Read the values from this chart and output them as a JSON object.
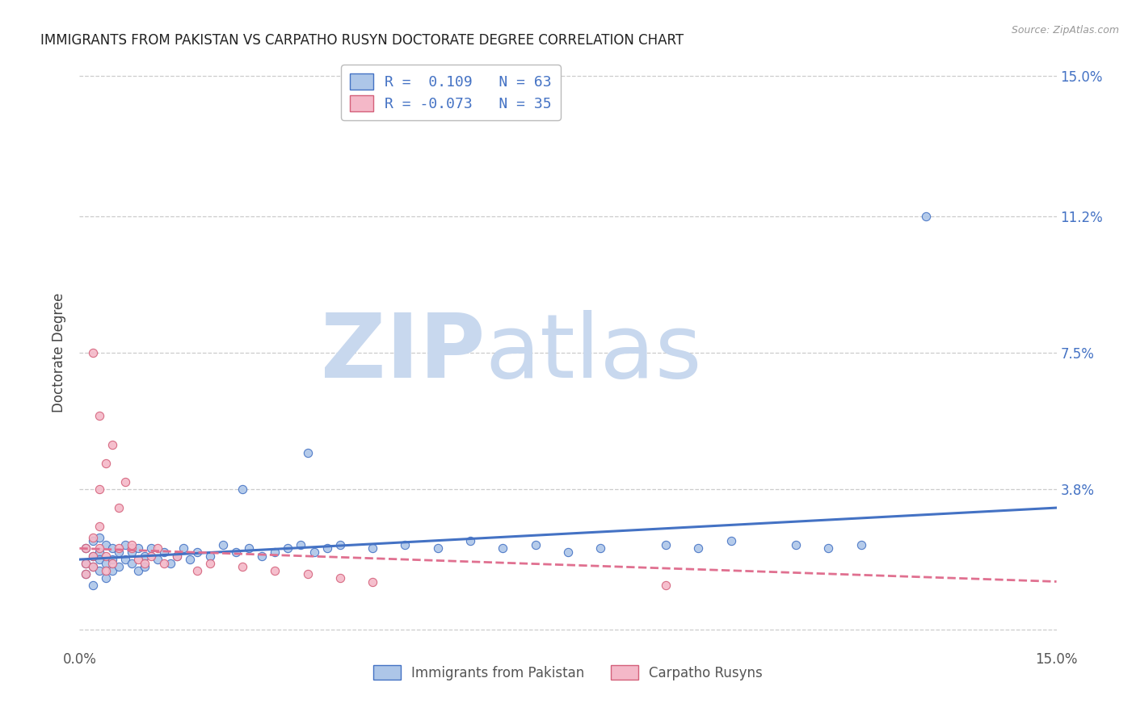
{
  "title": "IMMIGRANTS FROM PAKISTAN VS CARPATHO RUSYN DOCTORATE DEGREE CORRELATION CHART",
  "source_text": "Source: ZipAtlas.com",
  "ylabel": "Doctorate Degree",
  "xlim": [
    0.0,
    0.15
  ],
  "ylim": [
    -0.005,
    0.155
  ],
  "watermark_zip": "ZIP",
  "watermark_atlas": "atlas",
  "watermark_color_zip": "#c8d8ee",
  "watermark_color_atlas": "#c8d8ee",
  "grid_color": "#cccccc",
  "background_color": "#ffffff",
  "blue_scatter_x": [
    0.001,
    0.001,
    0.001,
    0.002,
    0.002,
    0.002,
    0.002,
    0.003,
    0.003,
    0.003,
    0.003,
    0.004,
    0.004,
    0.004,
    0.005,
    0.005,
    0.005,
    0.006,
    0.006,
    0.007,
    0.007,
    0.008,
    0.008,
    0.009,
    0.009,
    0.01,
    0.01,
    0.011,
    0.012,
    0.013,
    0.014,
    0.015,
    0.016,
    0.017,
    0.018,
    0.02,
    0.022,
    0.024,
    0.026,
    0.028,
    0.03,
    0.032,
    0.034,
    0.036,
    0.038,
    0.04,
    0.045,
    0.05,
    0.055,
    0.06,
    0.065,
    0.07,
    0.075,
    0.08,
    0.09,
    0.095,
    0.1,
    0.11,
    0.115,
    0.12,
    0.035,
    0.025,
    0.13
  ],
  "blue_scatter_y": [
    0.018,
    0.022,
    0.015,
    0.02,
    0.017,
    0.024,
    0.012,
    0.021,
    0.019,
    0.025,
    0.016,
    0.023,
    0.018,
    0.014,
    0.022,
    0.019,
    0.016,
    0.021,
    0.017,
    0.023,
    0.019,
    0.021,
    0.018,
    0.022,
    0.016,
    0.02,
    0.017,
    0.022,
    0.019,
    0.021,
    0.018,
    0.02,
    0.022,
    0.019,
    0.021,
    0.02,
    0.023,
    0.021,
    0.022,
    0.02,
    0.021,
    0.022,
    0.023,
    0.021,
    0.022,
    0.023,
    0.022,
    0.023,
    0.022,
    0.024,
    0.022,
    0.023,
    0.021,
    0.022,
    0.023,
    0.022,
    0.024,
    0.023,
    0.022,
    0.023,
    0.048,
    0.038,
    0.112
  ],
  "pink_scatter_x": [
    0.001,
    0.001,
    0.001,
    0.002,
    0.002,
    0.002,
    0.003,
    0.003,
    0.003,
    0.004,
    0.004,
    0.005,
    0.005,
    0.006,
    0.006,
    0.007,
    0.008,
    0.009,
    0.01,
    0.011,
    0.012,
    0.013,
    0.015,
    0.018,
    0.02,
    0.025,
    0.03,
    0.035,
    0.04,
    0.045,
    0.002,
    0.003,
    0.004,
    0.008,
    0.09
  ],
  "pink_scatter_y": [
    0.022,
    0.018,
    0.015,
    0.025,
    0.02,
    0.017,
    0.022,
    0.038,
    0.028,
    0.02,
    0.016,
    0.05,
    0.018,
    0.033,
    0.022,
    0.04,
    0.022,
    0.019,
    0.018,
    0.02,
    0.022,
    0.018,
    0.02,
    0.016,
    0.018,
    0.017,
    0.016,
    0.015,
    0.014,
    0.013,
    0.075,
    0.058,
    0.045,
    0.023,
    0.012
  ],
  "blue_trend_x": [
    0.0,
    0.15
  ],
  "blue_trend_y": [
    0.019,
    0.033
  ],
  "pink_trend_x": [
    0.0,
    0.15
  ],
  "pink_trend_y": [
    0.022,
    0.013
  ],
  "blue_color": "#adc6e8",
  "blue_edge": "#4472c4",
  "pink_color": "#f4b8c8",
  "pink_edge": "#d4607a",
  "blue_line_color": "#4472c4",
  "pink_line_color": "#e07090",
  "legend_text_color": "#4472c4",
  "legend_label_1": "R =  0.109   N = 63",
  "legend_label_2": "R = -0.073   N = 35",
  "bottom_label_1": "Immigrants from Pakistan",
  "bottom_label_2": "Carpatho Rusyns"
}
